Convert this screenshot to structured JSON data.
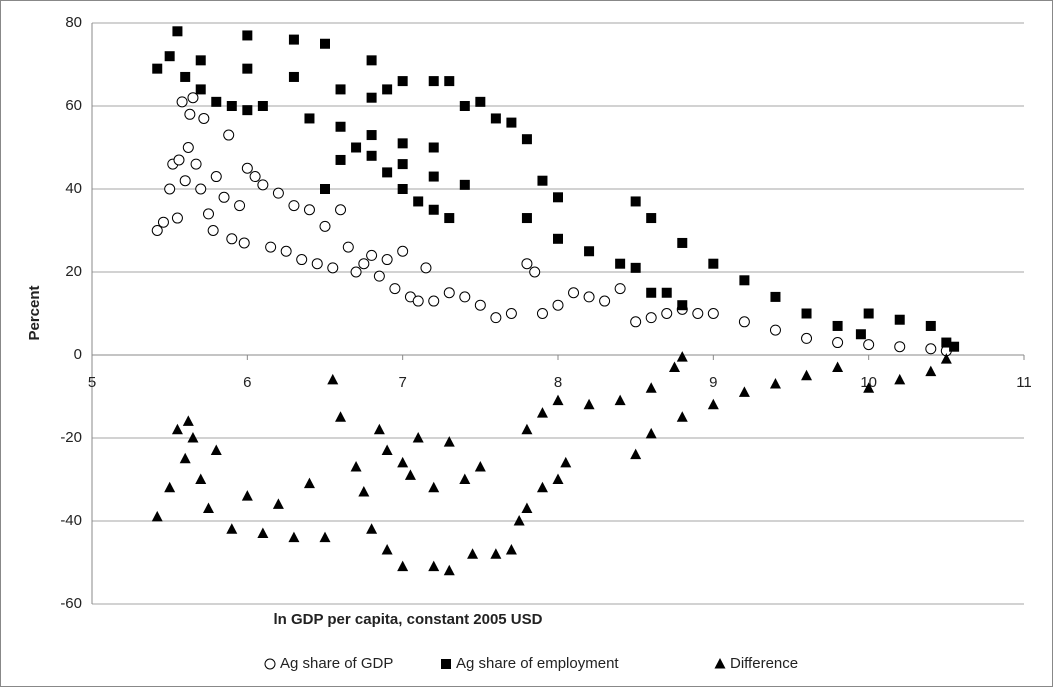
{
  "chart_data": {
    "type": "scatter",
    "x_label": "ln GDP per capita, constant 2005 USD",
    "y_label": "Percent",
    "xlim": [
      5,
      11
    ],
    "xticks": [
      5,
      6,
      7,
      8,
      9,
      10,
      11
    ],
    "ylim": [
      -60,
      80
    ],
    "yticks": [
      -60,
      -40,
      -20,
      0,
      20,
      40,
      60,
      80
    ],
    "grid": true,
    "legend": "bottom",
    "series": [
      {
        "name": "Ag share of GDP",
        "color": "#000000",
        "marker": "circle-open",
        "x": [
          5.42,
          5.46,
          5.5,
          5.52,
          5.55,
          5.56,
          5.58,
          5.6,
          5.62,
          5.63,
          5.65,
          5.67,
          5.7,
          5.72,
          5.75,
          5.78,
          5.8,
          5.85,
          5.88,
          5.9,
          5.95,
          5.98,
          6.0,
          6.05,
          6.1,
          6.15,
          6.2,
          6.25,
          6.3,
          6.35,
          6.4,
          6.45,
          6.5,
          6.55,
          6.6,
          6.65,
          6.7,
          6.75,
          6.8,
          6.85,
          6.9,
          6.95,
          7.0,
          7.05,
          7.1,
          7.15,
          7.2,
          7.3,
          7.4,
          7.5,
          7.6,
          7.7,
          7.8,
          7.85,
          7.9,
          8.0,
          8.1,
          8.2,
          8.3,
          8.4,
          8.5,
          8.6,
          8.7,
          8.8,
          8.9,
          9.0,
          9.2,
          9.4,
          9.6,
          9.8,
          10.0,
          10.2,
          10.4,
          10.5
        ],
        "values": [
          30,
          32,
          40,
          46,
          33,
          47,
          61,
          42,
          50,
          58,
          62,
          46,
          40,
          57,
          34,
          30,
          43,
          38,
          53,
          28,
          36,
          27,
          45,
          43,
          41,
          26,
          39,
          25,
          36,
          23,
          35,
          22,
          31,
          21,
          35,
          26,
          20,
          22,
          24,
          19,
          23,
          16,
          25,
          14,
          13,
          21,
          13,
          15,
          14,
          12,
          9,
          10,
          22,
          20,
          10,
          12,
          15,
          14,
          13,
          16,
          8,
          9,
          10,
          11,
          10,
          10,
          8,
          6,
          4,
          3,
          2.5,
          2,
          1.5,
          1
        ]
      },
      {
        "name": "Ag share of employment",
        "color": "#000000",
        "marker": "square",
        "x": [
          5.42,
          5.5,
          5.55,
          5.6,
          5.7,
          5.8,
          5.9,
          6.0,
          6.1,
          5.7,
          6.0,
          6.3,
          6.6,
          6.8,
          6.9,
          7.0,
          7.2,
          7.3,
          7.4,
          7.5,
          7.6,
          7.7,
          7.8,
          7.9,
          8.0,
          6.0,
          6.3,
          6.5,
          6.8,
          6.4,
          6.6,
          6.8,
          7.0,
          7.2,
          6.5,
          6.6,
          6.7,
          6.8,
          6.9,
          7.0,
          7.1,
          7.2,
          7.3,
          7.0,
          7.2,
          7.4,
          7.8,
          8.0,
          8.2,
          8.4,
          8.6,
          8.8,
          8.5,
          8.6,
          8.8,
          9.0,
          9.2,
          9.4,
          9.6,
          9.8,
          9.95,
          10.0,
          10.2,
          10.4,
          10.5,
          10.55,
          8.5,
          8.7
        ],
        "values": [
          69,
          72,
          78,
          67,
          64,
          61,
          60,
          59,
          60,
          71,
          69,
          67,
          64,
          62,
          64,
          66,
          66,
          66,
          60,
          61,
          57,
          56,
          52,
          42,
          38,
          77,
          76,
          75,
          71,
          57,
          55,
          53,
          51,
          50,
          40,
          47,
          50,
          48,
          44,
          40,
          37,
          35,
          33,
          46,
          43,
          41,
          33,
          28,
          25,
          22,
          15,
          12,
          37,
          33,
          27,
          22,
          18,
          14,
          10,
          7,
          5,
          10,
          8.5,
          7,
          3,
          2,
          21,
          15
        ]
      },
      {
        "name": "Difference",
        "color": "#000000",
        "marker": "triangle",
        "x": [
          5.42,
          5.5,
          5.55,
          5.6,
          5.62,
          5.65,
          5.7,
          5.75,
          5.8,
          5.9,
          6.0,
          6.1,
          6.2,
          6.3,
          6.4,
          6.5,
          6.55,
          6.6,
          6.7,
          6.75,
          6.8,
          6.85,
          6.9,
          7.0,
          7.05,
          7.1,
          7.2,
          7.3,
          7.4,
          7.5,
          6.9,
          7.0,
          7.2,
          7.3,
          7.45,
          7.6,
          7.7,
          7.75,
          7.8,
          7.9,
          8.0,
          8.2,
          8.4,
          8.6,
          8.75,
          8.8,
          7.8,
          7.9,
          8.0,
          8.05,
          8.5,
          8.6,
          8.8,
          9.0,
          9.2,
          9.4,
          9.6,
          9.8,
          10.0,
          10.2,
          10.4,
          10.5
        ],
        "values": [
          -39,
          -32,
          -18,
          -25,
          -16,
          -20,
          -30,
          -37,
          -23,
          -42,
          -34,
          -43,
          -36,
          -44,
          -31,
          -44,
          -6,
          -15,
          -27,
          -33,
          -42,
          -18,
          -23,
          -26,
          -29,
          -20,
          -32,
          -21,
          -30,
          -27,
          -47,
          -51,
          -51,
          -52,
          -48,
          -48,
          -47,
          -40,
          -18,
          -14,
          -11,
          -12,
          -11,
          -8,
          -3,
          -0.5,
          -37,
          -32,
          -30,
          -26,
          -24,
          -19,
          -15,
          -12,
          -9,
          -7,
          -5,
          -3,
          -8,
          -6,
          -4,
          -1
        ]
      }
    ]
  }
}
